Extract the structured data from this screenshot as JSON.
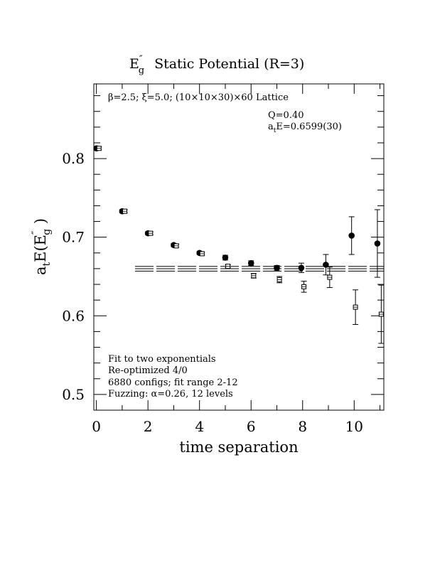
{
  "chart_data": {
    "type": "scatter",
    "title": "Static Potential (R=3)",
    "title_symbol": {
      "base": "E",
      "prime": "″",
      "sub": "g"
    },
    "xlabel": "time separation",
    "ylabel": {
      "prefix": "a",
      "prefix_sub": "t",
      "body": "E(E",
      "prime": "″",
      "sub": "g",
      "close": " )"
    },
    "xlim": [
      -0.1,
      11.15
    ],
    "ylim": [
      0.48,
      0.895
    ],
    "xticks": [
      0,
      2,
      4,
      6,
      8,
      10
    ],
    "xtick_labels": [
      "0",
      "2",
      "4",
      "6",
      "8",
      "10"
    ],
    "yticks": [
      0.5,
      0.6,
      0.7,
      0.8
    ],
    "ytick_labels": [
      "0.5",
      "0.6",
      "0.7",
      "0.8"
    ],
    "grid": false,
    "header_annotation": "β=2.5; ξ=5.0; (10×10×30)×60 Lattice",
    "fit_info": {
      "q_line": "Q=0.40",
      "energy": {
        "prefix": "a",
        "sub": "t",
        "text": "E=0.6599(30)"
      }
    },
    "notes": [
      "Fit to two exponentials",
      "Re-optimized 4/0",
      "6880 configs; fit range 2-12",
      "Fuzzing: α=0.26, 12 levels"
    ],
    "fit_band": {
      "x_range": [
        1.5,
        11.15
      ],
      "center": 0.6599,
      "error": 0.003
    },
    "series": [
      {
        "marker": "filled-circle",
        "points": [
          {
            "x": 0,
            "y": 0.813,
            "err": 0.002
          },
          {
            "x": 1,
            "y": 0.733,
            "err": 0.002
          },
          {
            "x": 2,
            "y": 0.705,
            "err": 0.002
          },
          {
            "x": 3,
            "y": 0.69,
            "err": 0.002
          },
          {
            "x": 4,
            "y": 0.68,
            "err": 0.002
          },
          {
            "x": 5,
            "y": 0.674,
            "err": 0.003
          },
          {
            "x": 6,
            "y": 0.667,
            "err": 0.003
          },
          {
            "x": 7,
            "y": 0.661,
            "err": 0.003
          },
          {
            "x": 7.95,
            "y": 0.661,
            "err": 0.006
          },
          {
            "x": 8.9,
            "y": 0.665,
            "err": 0.013
          },
          {
            "x": 9.9,
            "y": 0.702,
            "err": 0.024
          },
          {
            "x": 10.9,
            "y": 0.692,
            "err": 0.043
          }
        ]
      },
      {
        "marker": "open-square",
        "points": [
          {
            "x": 0.1,
            "y": 0.813,
            "err": 0.002
          },
          {
            "x": 1.1,
            "y": 0.733,
            "err": 0.002
          },
          {
            "x": 2.1,
            "y": 0.705,
            "err": 0.002
          },
          {
            "x": 3.1,
            "y": 0.689,
            "err": 0.002
          },
          {
            "x": 4.1,
            "y": 0.679,
            "err": 0.002
          },
          {
            "x": 5.1,
            "y": 0.663,
            "err": 0.002
          },
          {
            "x": 6.1,
            "y": 0.651,
            "err": 0.003
          },
          {
            "x": 7.1,
            "y": 0.646,
            "err": 0.004
          },
          {
            "x": 8.05,
            "y": 0.637,
            "err": 0.007
          },
          {
            "x": 9.05,
            "y": 0.649,
            "err": 0.013
          },
          {
            "x": 10.05,
            "y": 0.611,
            "err": 0.022
          },
          {
            "x": 11.05,
            "y": 0.602,
            "err": 0.037
          }
        ]
      }
    ]
  }
}
